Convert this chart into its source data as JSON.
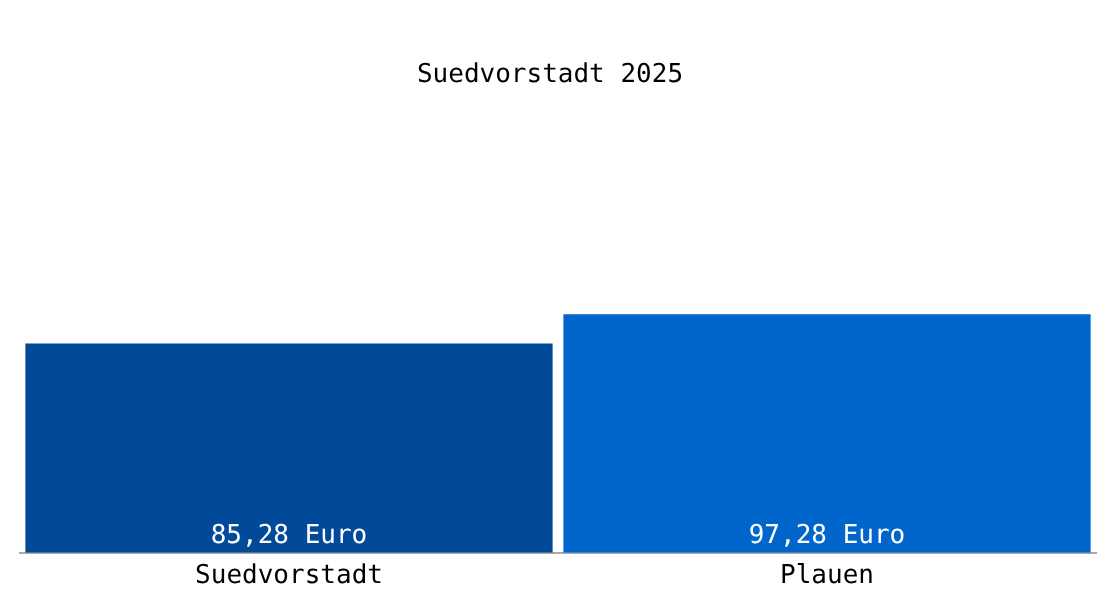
{
  "chart_data": {
    "type": "bar",
    "title": "Suedvorstadt 2025",
    "categories": [
      "Suedvorstadt",
      "Plauen"
    ],
    "values": [
      85.28,
      97.28
    ],
    "colors": [
      "#004a99",
      "#0066cc"
    ],
    "value_labels": [
      "85,28 Euro",
      "97,28 Euro"
    ],
    "tick_labels": "x",
    "grid": false,
    "legend": false
  }
}
